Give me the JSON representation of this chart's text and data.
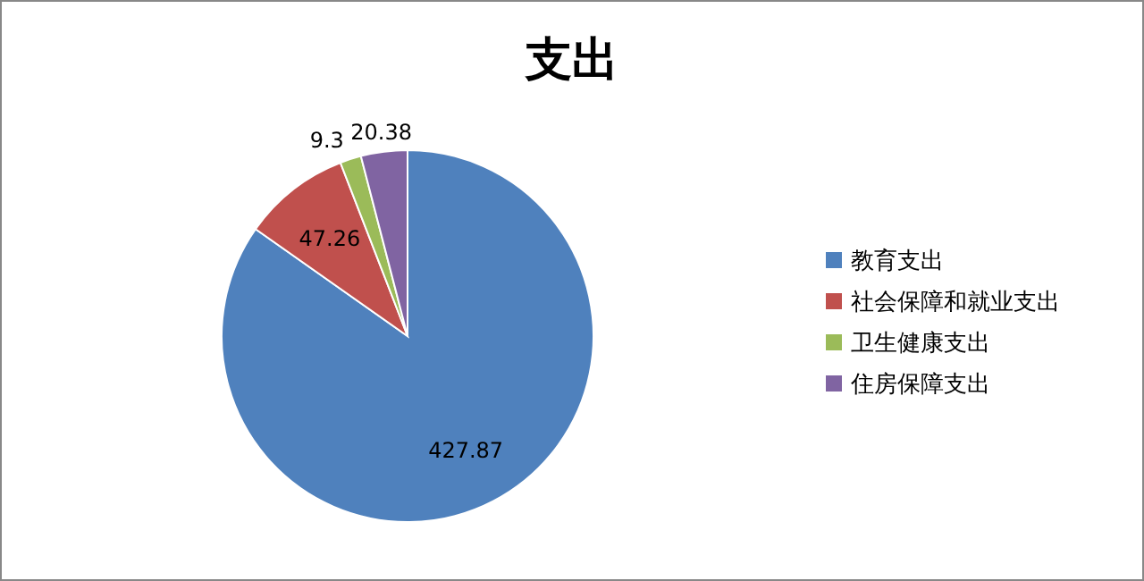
{
  "chart_data": {
    "type": "pie",
    "title": "支出",
    "categories": [
      "教育支出",
      "社会保障和就业支出",
      "卫生健康支出",
      "住房保障支出"
    ],
    "values": [
      427.87,
      47.26,
      9.3,
      20.38
    ],
    "colors": [
      "#4f81bd",
      "#c0504d",
      "#9bbb59",
      "#8064a2"
    ],
    "data_labels": true,
    "legend": "right"
  }
}
